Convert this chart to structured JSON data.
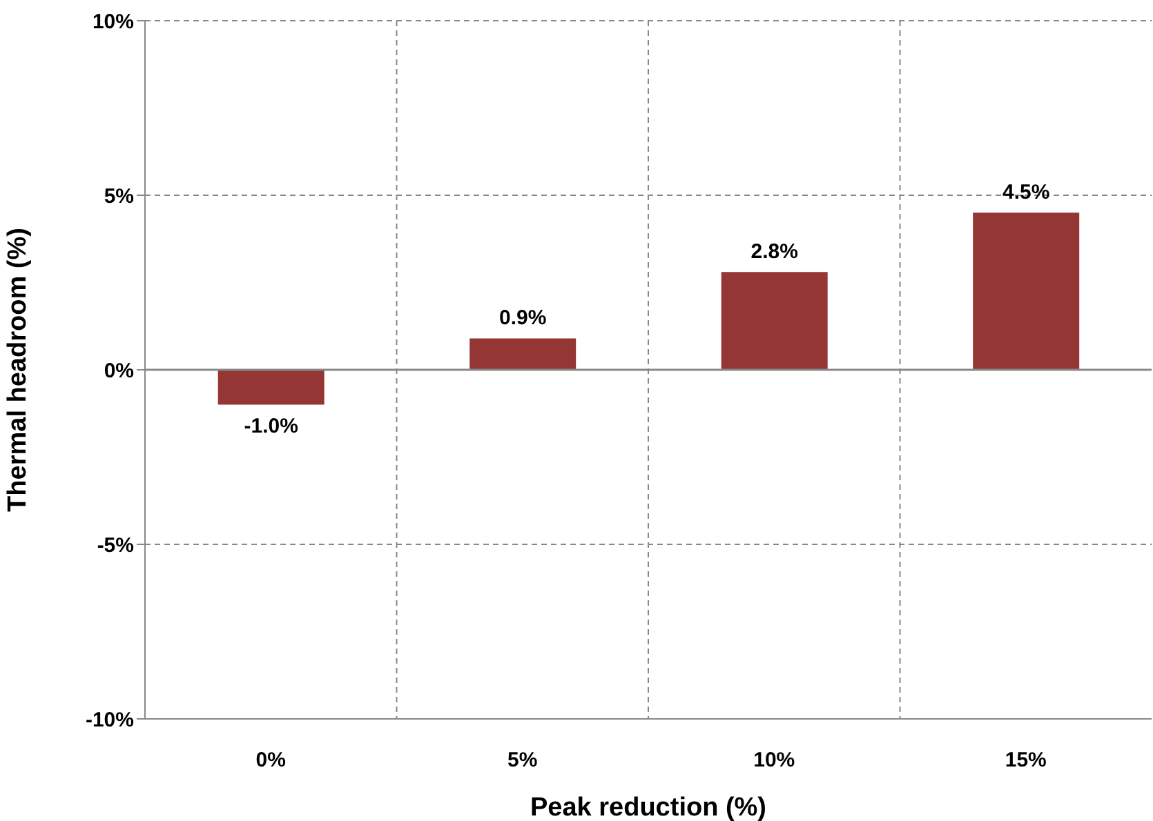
{
  "chart_data": {
    "type": "bar",
    "xlabel": "Peak reduction (%)",
    "ylabel": "Thermal headroom (%)",
    "categories": [
      "0%",
      "5%",
      "10%",
      "15%"
    ],
    "values": [
      -1.0,
      0.9,
      2.8,
      4.5
    ],
    "value_labels": [
      "-1.0%",
      "0.9%",
      "2.8%",
      "4.5%"
    ],
    "color": "#943634",
    "ylim": [
      -10,
      10
    ],
    "yticks": [
      {
        "value": -10,
        "label": "-10%"
      },
      {
        "value": -5,
        "label": "-5%"
      },
      {
        "value": 0,
        "label": "0%"
      },
      {
        "value": 5,
        "label": "5%"
      },
      {
        "value": 10,
        "label": "10%"
      }
    ],
    "grid": true
  }
}
